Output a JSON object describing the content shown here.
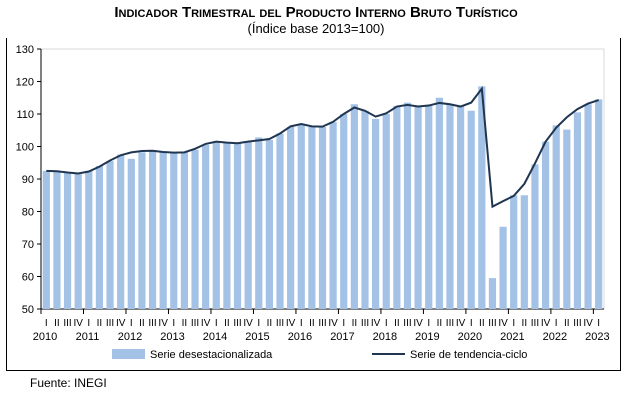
{
  "chart_data": {
    "type": "bar",
    "title": "Indicador Trimestral del Producto Interno Bruto Turístico",
    "subtitle": "(Índice base 2013=100)",
    "xlabel": "",
    "ylabel": "",
    "ylim": [
      50,
      130
    ],
    "yticks": [
      50,
      60,
      70,
      80,
      90,
      100,
      110,
      120,
      130
    ],
    "years": [
      "2010",
      "2011",
      "2012",
      "2013",
      "2014",
      "2015",
      "2016",
      "2017",
      "2018",
      "2019",
      "2020",
      "2021",
      "2022",
      "2023"
    ],
    "quarters": [
      "I",
      "II",
      "III",
      "IV"
    ],
    "series": [
      {
        "name": "Serie desestacionalizada",
        "type": "bar",
        "color": "#a3c2e6",
        "values": [
          92.5,
          92.2,
          91.8,
          91.5,
          92.5,
          94,
          95.5,
          97.5,
          96.2,
          98.2,
          98.5,
          98.5,
          98.1,
          98.2,
          99,
          100.5,
          101.5,
          101.2,
          101,
          101.5,
          102.8,
          102,
          104,
          106,
          107,
          106,
          106,
          107.5,
          110,
          113,
          111,
          108.5,
          110,
          112.5,
          113.5,
          112.5,
          112.8,
          115,
          113,
          112.5,
          111,
          118.5,
          59.5,
          75.3,
          85,
          85,
          94.5,
          101.5,
          106.5,
          105.2,
          110.5,
          113,
          114.5
        ]
      },
      {
        "name": "Serie de tendencia-ciclo",
        "type": "line",
        "color": "#1f3550",
        "values": [
          92.5,
          92.4,
          92,
          91.7,
          92.3,
          93.8,
          95.7,
          97.3,
          98.2,
          98.6,
          98.7,
          98.3,
          98.1,
          98.2,
          99.3,
          100.8,
          101.5,
          101.2,
          101,
          101.5,
          101.9,
          102.3,
          104,
          106.2,
          106.9,
          106.2,
          106.1,
          107.6,
          110,
          112,
          111,
          109.2,
          110.2,
          112.3,
          112.8,
          112.3,
          112.6,
          113.4,
          113,
          112.3,
          113.5,
          117.8,
          81.5,
          83.2,
          84.8,
          88.5,
          94.8,
          101.5,
          105.8,
          109,
          111.5,
          113.2,
          114.3
        ]
      }
    ],
    "legend_position": "bottom"
  },
  "source": "Fuente: INEGI"
}
